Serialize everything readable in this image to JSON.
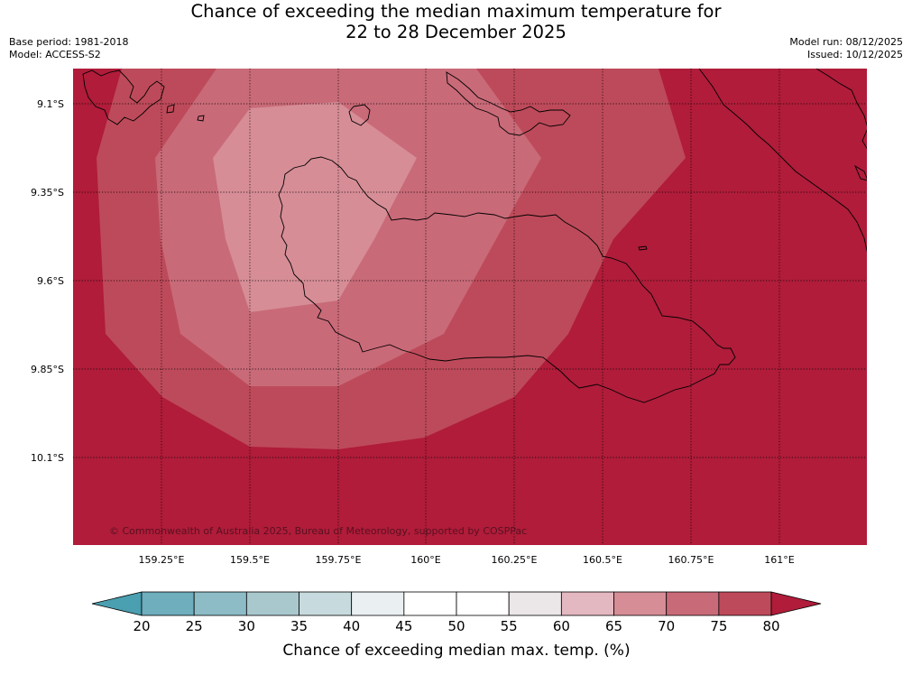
{
  "header": {
    "title_line1": "Chance of exceeding the median maximum temperature for",
    "title_line2": "22 to 28 December 2025",
    "base_period": "Base period: 1981-2018",
    "model": "Model: ACCESS-S2",
    "model_run": "Model run: 08/12/2025",
    "issued": "Issued: 10/12/2025"
  },
  "map": {
    "lat_labels": [
      "9.1°S",
      "9.35°S",
      "9.6°S",
      "9.85°S",
      "10.1°S"
    ],
    "lon_labels": [
      "159.25°E",
      "159.5°E",
      "159.75°E",
      "160°E",
      "160.25°E",
      "160.5°E",
      "160.75°E",
      "161°E"
    ],
    "copyright": "© Commonwealth of Australia 2025, Bureau of Meteorology, supported by COSPPac",
    "grid": true
  },
  "colorbar": {
    "ticks": [
      "20",
      "25",
      "30",
      "35",
      "40",
      "45",
      "50",
      "55",
      "60",
      "65",
      "70",
      "75",
      "80"
    ],
    "colors": [
      "#4a9fb0",
      "#6eaebd",
      "#8dbcc7",
      "#a9c8cd",
      "#c7dadd",
      "#eaf0f2",
      "#ffffff",
      "#ffffff",
      "#ebe6e8",
      "#e4b8c0",
      "#d68d96",
      "#c96a78",
      "#bd4a5a",
      "#b01c3a"
    ],
    "title": "Chance of exceeding median max. temp. (%)"
  },
  "colors": {
    "band_above_80": "#b01c3a",
    "band_75_80": "#bd4a5a",
    "band_70_75": "#c96a78",
    "band_65_70": "#d68d96"
  }
}
